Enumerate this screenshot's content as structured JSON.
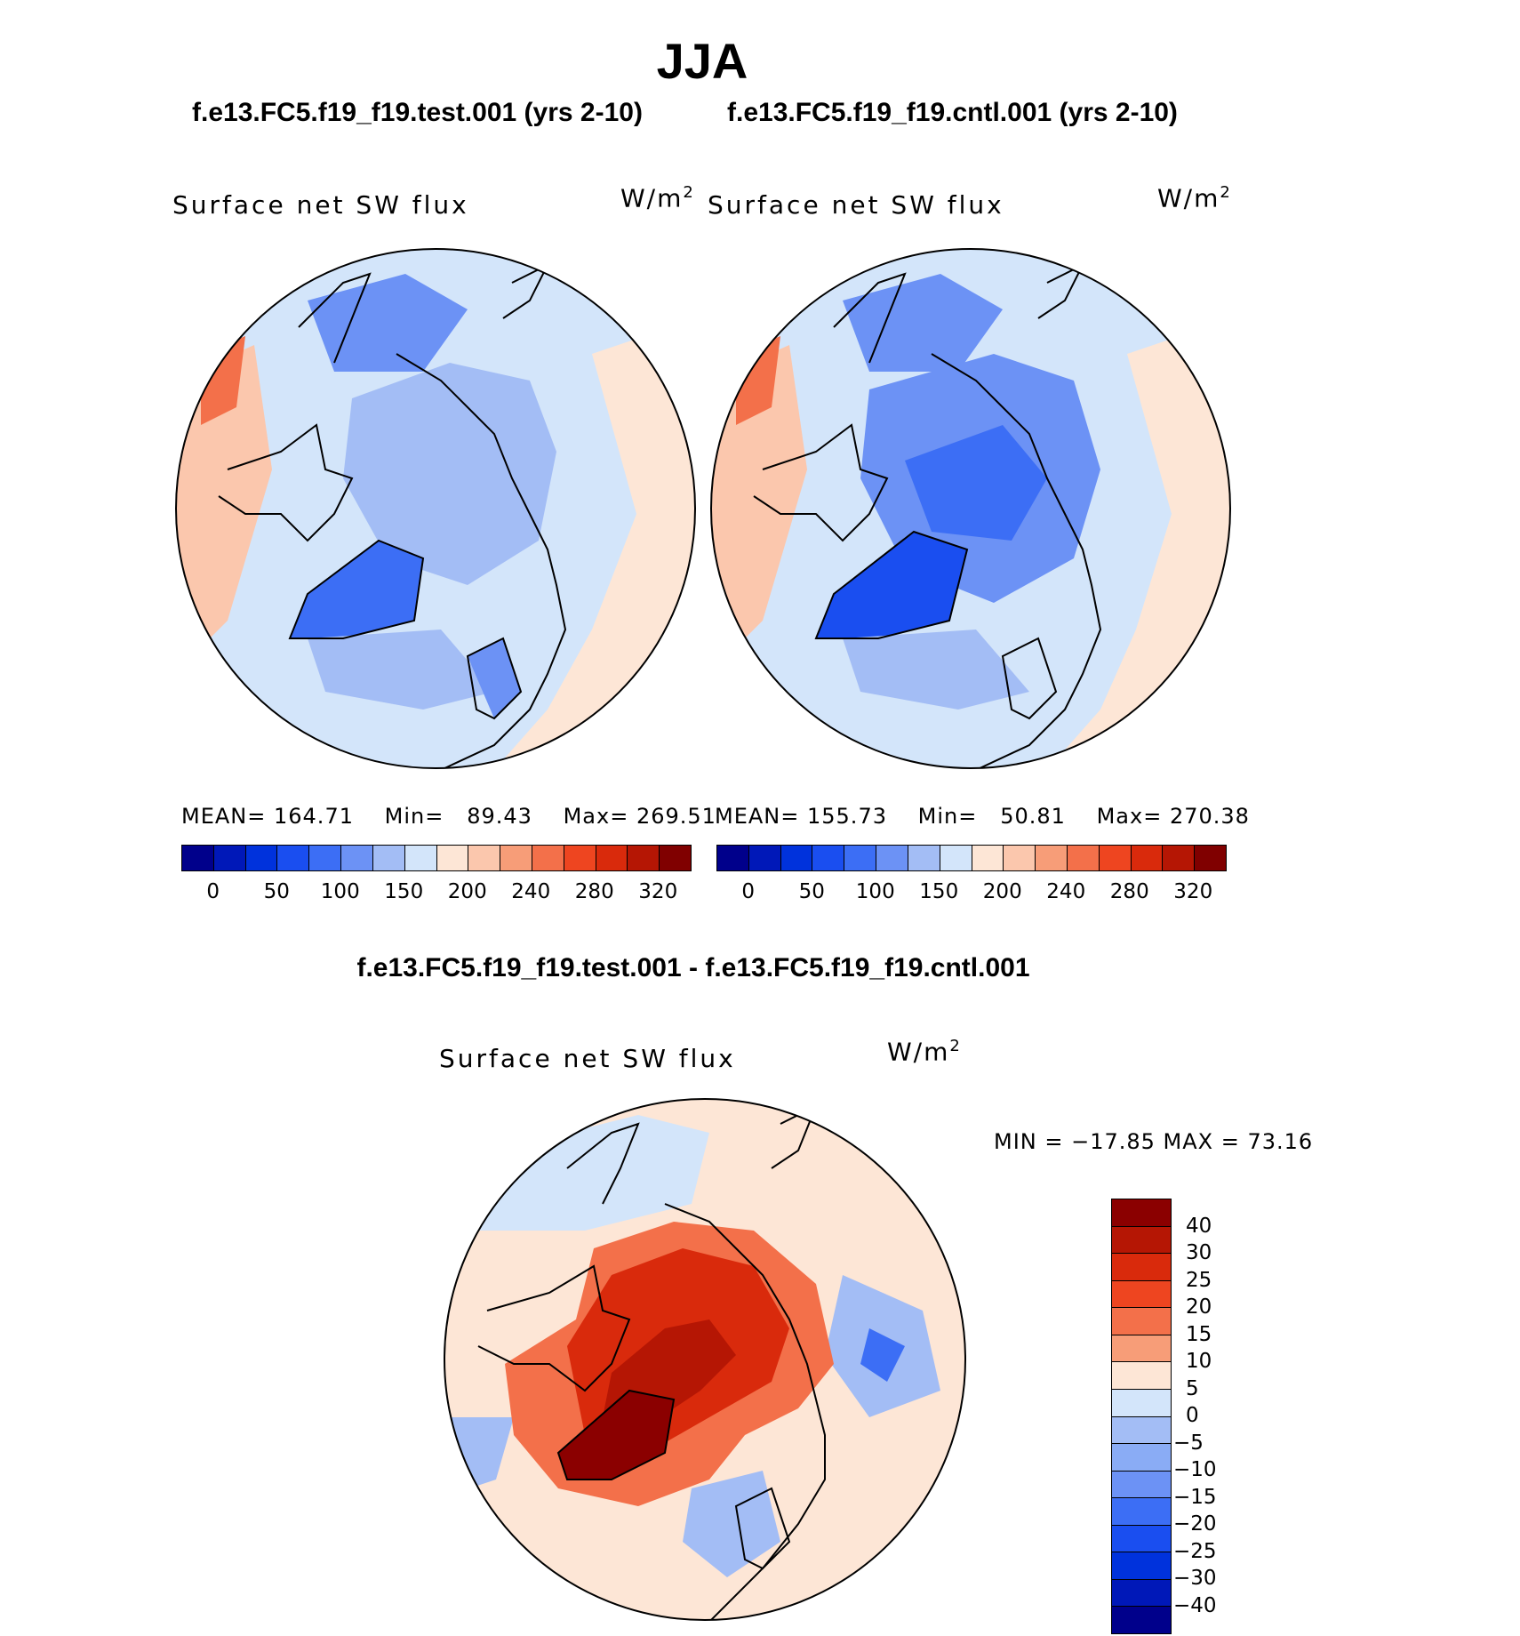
{
  "title": "JJA",
  "panels": {
    "test": {
      "header": "f.e13.FC5.f19_f19.test.001 (yrs 2-10)",
      "variable": "Surface net SW flux",
      "unit": "W/m",
      "unit_exp": "2",
      "mean_label": "MEAN=",
      "mean": "164.71",
      "min_label": "Min=",
      "min": "89.43",
      "max_label": "Max=",
      "max": "269.51"
    },
    "cntl": {
      "header": "f.e13.FC5.f19_f19.cntl.001 (yrs 2-10)",
      "variable": "Surface net SW flux",
      "unit": "W/m",
      "unit_exp": "2",
      "mean_label": "MEAN=",
      "mean": "155.73",
      "min_label": "Min=",
      "min": "50.81",
      "max_label": "Max=",
      "max": "270.38"
    },
    "diff": {
      "header": "f.e13.FC5.f19_f19.test.001 - f.e13.FC5.f19_f19.cntl.001",
      "variable": "Surface net SW flux",
      "unit": "W/m",
      "unit_exp": "2",
      "minmax": "MIN = −17.85 MAX =   73.16"
    }
  },
  "abs_colorbar": {
    "colors": [
      "#00008b",
      "#0018b8",
      "#0032dc",
      "#1a4ef0",
      "#3c6ef5",
      "#6c92f5",
      "#a3bdf5",
      "#d3e5fa",
      "#fde6d6",
      "#fbc7ad",
      "#f79d78",
      "#f3704a",
      "#ee4520",
      "#d92a0c",
      "#b51604",
      "#800000"
    ],
    "ticks": [
      "0",
      "50",
      "100",
      "150",
      "200",
      "240",
      "280",
      "320"
    ]
  },
  "diff_colorbar": {
    "colors": [
      "#8b0000",
      "#b51604",
      "#d92a0c",
      "#ee4520",
      "#f3704a",
      "#f79d78",
      "#fde6d6",
      "#d3e5fa",
      "#a3bdf5",
      "#8aacf5",
      "#6c92f5",
      "#3c6ef5",
      "#1a4ef0",
      "#0032dc",
      "#0018b8",
      "#00008b"
    ],
    "ticks": [
      "40",
      "30",
      "25",
      "20",
      "15",
      "10",
      "5",
      "0",
      "−5",
      "−10",
      "−15",
      "−20",
      "−25",
      "−30",
      "−40"
    ]
  },
  "map_colors": {
    "ocean_light": "#fde6d6",
    "pale_blue": "#d3e5fa",
    "light_blue": "#a3bdf5",
    "mid_blue": "#6c92f5",
    "deep_blue": "#3c6ef5",
    "strong_blue": "#1a4ef0",
    "salmon": "#f79d78",
    "orange": "#f3704a",
    "red": "#d92a0c",
    "dark_red": "#b51604",
    "maroon": "#8b0000"
  }
}
